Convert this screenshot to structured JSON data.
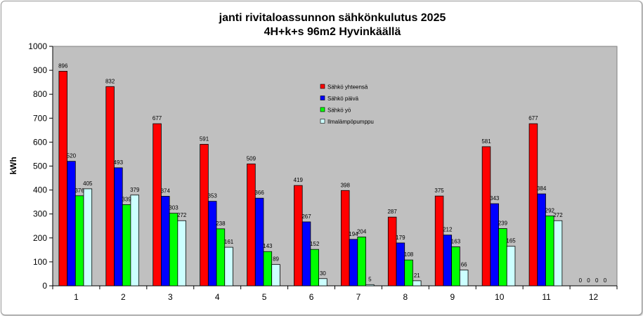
{
  "chart_data": {
    "type": "bar",
    "title": "janti rivitaloassunnon sähkönkulutus 2025",
    "subtitle": "4H+k+s 96m2 Hyvinkäällä",
    "xlabel": "",
    "ylabel": "kWh",
    "ylim": [
      0,
      1000
    ],
    "yticks": [
      0,
      100,
      200,
      300,
      400,
      500,
      600,
      700,
      800,
      900,
      1000
    ],
    "categories": [
      "1",
      "2",
      "3",
      "4",
      "5",
      "6",
      "7",
      "8",
      "9",
      "10",
      "11",
      "12"
    ],
    "grid": false,
    "legend_position": "inside-top-center",
    "plot_background": "#c0c0c0",
    "series": [
      {
        "name": "Sähkö yhteensä",
        "color": "#ff0000",
        "values": [
          896,
          832,
          677,
          591,
          509,
          419,
          398,
          287,
          375,
          581,
          677,
          0
        ]
      },
      {
        "name": "Sähkö päivä",
        "color": "#0000ff",
        "values": [
          520,
          493,
          374,
          353,
          366,
          267,
          194,
          179,
          212,
          343,
          384,
          0
        ]
      },
      {
        "name": "Sähkö yö",
        "color": "#00ff00",
        "values": [
          376,
          339,
          303,
          238,
          143,
          152,
          204,
          108,
          163,
          239,
          292,
          0
        ]
      },
      {
        "name": "Ilmalämpöpumppu",
        "color": "#ccffff",
        "values": [
          405,
          379,
          272,
          161,
          89,
          30,
          5,
          21,
          66,
          165,
          272,
          0
        ]
      }
    ]
  }
}
